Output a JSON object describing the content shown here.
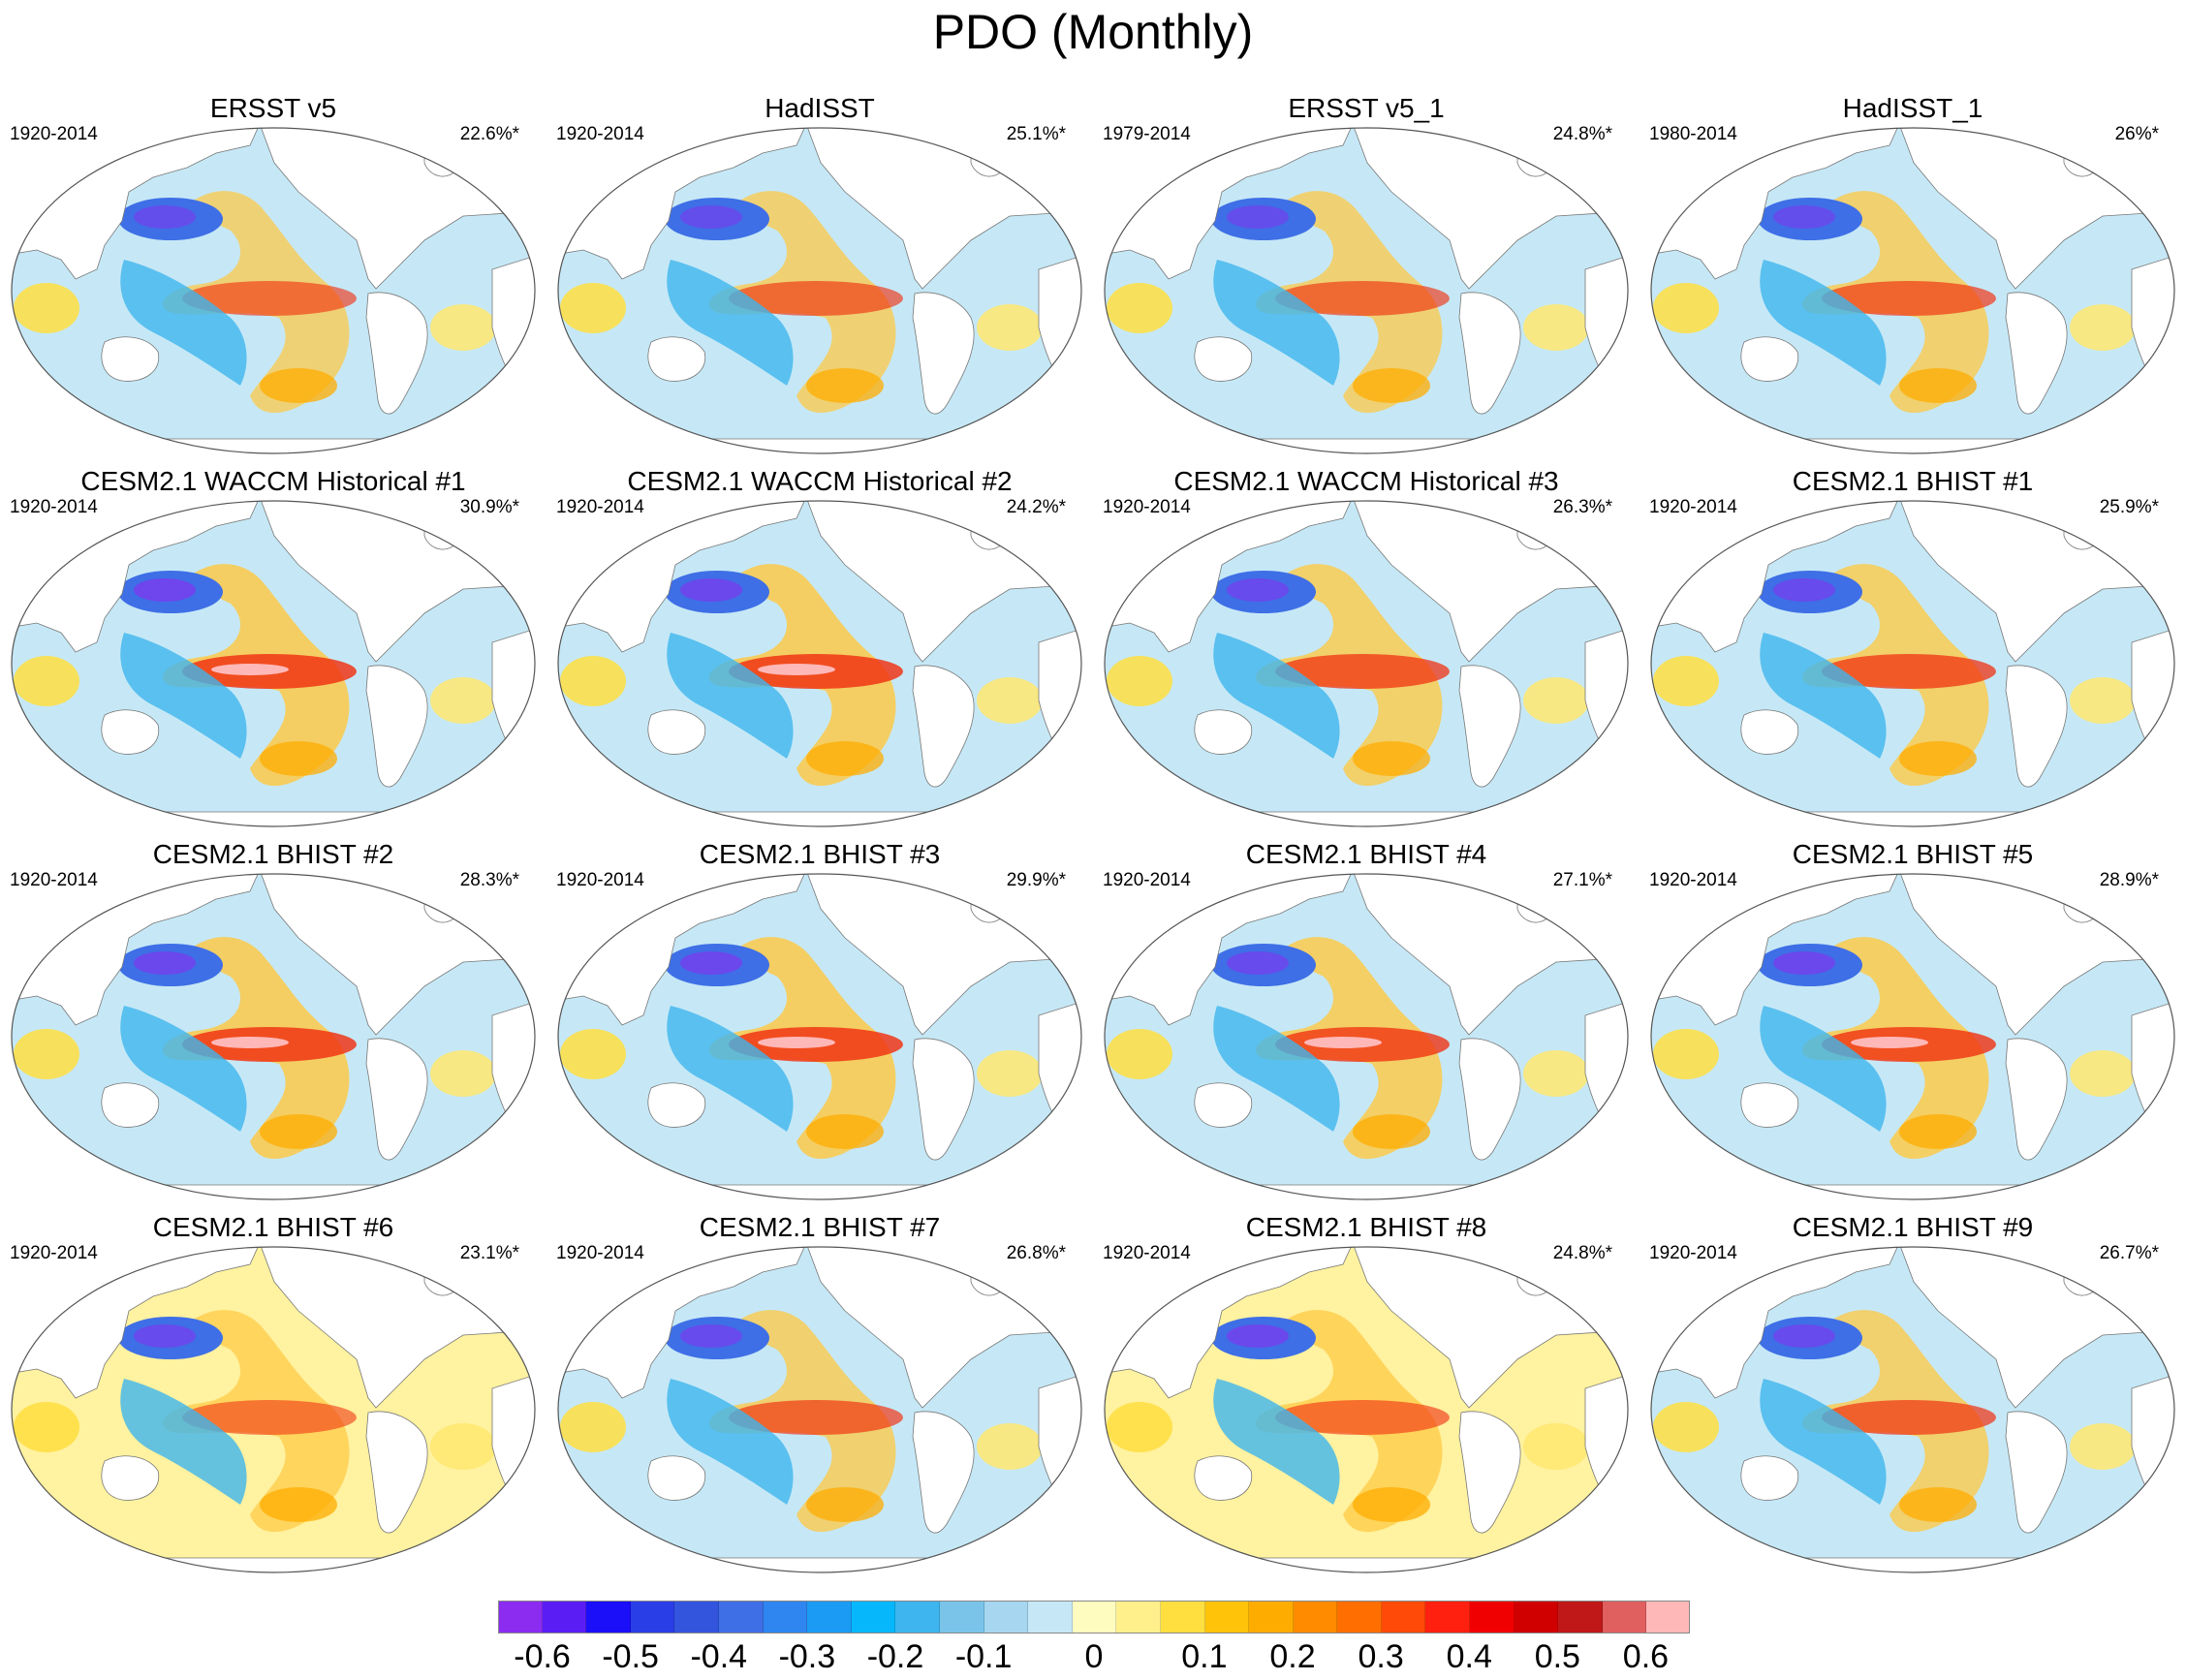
{
  "figure": {
    "title": "PDO (Monthly)"
  },
  "panels": [
    {
      "title": "ERSST v5",
      "period": "1920-2014",
      "variance": "22.6%*",
      "pdo_strength": 0.5,
      "equatorial_strength": 0.4,
      "fill": "#c6e8f6"
    },
    {
      "title": "HadISST",
      "period": "1920-2014",
      "variance": "25.1%*",
      "pdo_strength": 0.5,
      "equatorial_strength": 0.42,
      "fill": "#c6e8f6"
    },
    {
      "title": "ERSST v5_1",
      "period": "1979-2014",
      "variance": "24.8%*",
      "pdo_strength": 0.5,
      "equatorial_strength": 0.42,
      "fill": "#c6e8f6"
    },
    {
      "title": "HadISST_1",
      "period": "1980-2014",
      "variance": "26%*",
      "pdo_strength": 0.5,
      "equatorial_strength": 0.48,
      "fill": "#c6e8f6"
    },
    {
      "title": "CESM2.1 WACCM Historical #1",
      "period": "1920-2014",
      "variance": "30.9%*",
      "pdo_strength": 0.65,
      "equatorial_strength": 0.65,
      "fill": "#c6e8f6"
    },
    {
      "title": "CESM2.1 WACCM Historical #2",
      "period": "1920-2014",
      "variance": "24.2%*",
      "pdo_strength": 0.6,
      "equatorial_strength": 0.65,
      "fill": "#c6e8f6"
    },
    {
      "title": "CESM2.1 WACCM Historical #3",
      "period": "1920-2014",
      "variance": "26.3%*",
      "pdo_strength": 0.55,
      "equatorial_strength": 0.55,
      "fill": "#c6e8f6"
    },
    {
      "title": "CESM2.1 BHIST #1",
      "period": "1920-2014",
      "variance": "25.9%*",
      "pdo_strength": 0.55,
      "equatorial_strength": 0.55,
      "fill": "#c6e8f6"
    },
    {
      "title": "CESM2.1 BHIST #2",
      "period": "1920-2014",
      "variance": "28.3%*",
      "pdo_strength": 0.6,
      "equatorial_strength": 0.65,
      "fill": "#c6e8f6"
    },
    {
      "title": "CESM2.1 BHIST #3",
      "period": "1920-2014",
      "variance": "29.9%*",
      "pdo_strength": 0.6,
      "equatorial_strength": 0.65,
      "fill": "#c6e8f6"
    },
    {
      "title": "CESM2.1 BHIST #4",
      "period": "1920-2014",
      "variance": "27.1%*",
      "pdo_strength": 0.55,
      "equatorial_strength": 0.6,
      "fill": "#c6e8f6"
    },
    {
      "title": "CESM2.1 BHIST #5",
      "period": "1920-2014",
      "variance": "28.9%*",
      "pdo_strength": 0.6,
      "equatorial_strength": 0.62,
      "fill": "#c6e8f6"
    },
    {
      "title": "CESM2.1 BHIST #6",
      "period": "1920-2014",
      "variance": "23.1%*",
      "pdo_strength": 0.55,
      "equatorial_strength": 0.35,
      "fill": "#fff2a0"
    },
    {
      "title": "CESM2.1 BHIST #7",
      "period": "1920-2014",
      "variance": "26.8%*",
      "pdo_strength": 0.55,
      "equatorial_strength": 0.48,
      "fill": "#c6e8f6"
    },
    {
      "title": "CESM2.1 BHIST #8",
      "period": "1920-2014",
      "variance": "24.8%*",
      "pdo_strength": 0.6,
      "equatorial_strength": 0.4,
      "fill": "#fff2a0"
    },
    {
      "title": "CESM2.1 BHIST #9",
      "period": "1920-2014",
      "variance": "26.7%*",
      "pdo_strength": 0.55,
      "equatorial_strength": 0.5,
      "fill": "#c6e8f6"
    }
  ],
  "colorbar": {
    "colors": [
      "#8b2cf0",
      "#5a1ef5",
      "#1a0ff8",
      "#2a3ee8",
      "#3355dd",
      "#3e6fe6",
      "#2f86f0",
      "#1b9bf3",
      "#06b8fb",
      "#3eb5ee",
      "#7ac4ea",
      "#a6d6f0",
      "#c6e8f6",
      "#fffcc0",
      "#fff08c",
      "#ffde40",
      "#ffc40a",
      "#ffac00",
      "#ff8c00",
      "#ff6e00",
      "#ff4a08",
      "#ff2010",
      "#f00000",
      "#d00000",
      "#c01818",
      "#e06060",
      "#ffb8b8"
    ],
    "labels": [
      {
        "text": "-0.6",
        "boundary": 1
      },
      {
        "text": "-0.5",
        "boundary": 3
      },
      {
        "text": "-0.4",
        "boundary": 5
      },
      {
        "text": "-0.3",
        "boundary": 7
      },
      {
        "text": "-0.2",
        "boundary": 9
      },
      {
        "text": "-0.1",
        "boundary": 11
      },
      {
        "text": "0",
        "boundary": 13.5
      },
      {
        "text": "0.1",
        "boundary": 16
      },
      {
        "text": "0.2",
        "boundary": 18
      },
      {
        "text": "0.3",
        "boundary": 20
      },
      {
        "text": "0.4",
        "boundary": 22
      },
      {
        "text": "0.5",
        "boundary": 24
      },
      {
        "text": "0.6",
        "boundary": 26
      }
    ]
  }
}
